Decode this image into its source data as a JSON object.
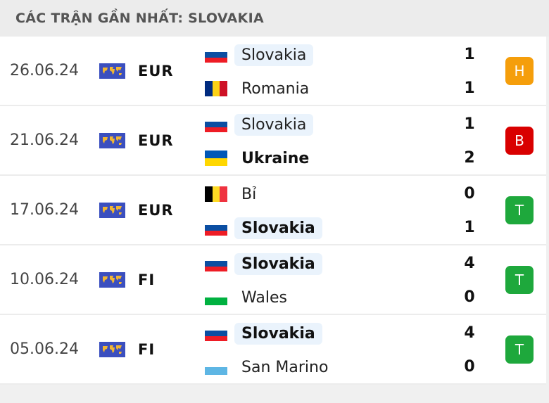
{
  "header": {
    "title": "CÁC TRẬN GẦN NHẤT: SLOVAKIA"
  },
  "colors": {
    "H": "#f59e0b",
    "B": "#d90000",
    "T": "#1ea83c"
  },
  "matches": [
    {
      "date": "26.06.24",
      "competition": "EUR",
      "home": {
        "name": "Slovakia",
        "flag": "slovakia",
        "score": "1",
        "highlight": true,
        "winner": false
      },
      "away": {
        "name": "Romania",
        "flag": "romania",
        "score": "1",
        "highlight": false,
        "winner": false
      },
      "result": "H"
    },
    {
      "date": "21.06.24",
      "competition": "EUR",
      "home": {
        "name": "Slovakia",
        "flag": "slovakia",
        "score": "1",
        "highlight": true,
        "winner": false
      },
      "away": {
        "name": "Ukraine",
        "flag": "ukraine",
        "score": "2",
        "highlight": false,
        "winner": true
      },
      "result": "B"
    },
    {
      "date": "17.06.24",
      "competition": "EUR",
      "home": {
        "name": "Bỉ",
        "flag": "belgium",
        "score": "0",
        "highlight": false,
        "winner": false
      },
      "away": {
        "name": "Slovakia",
        "flag": "slovakia",
        "score": "1",
        "highlight": true,
        "winner": true
      },
      "result": "T"
    },
    {
      "date": "10.06.24",
      "competition": "FI",
      "home": {
        "name": "Slovakia",
        "flag": "slovakia",
        "score": "4",
        "highlight": true,
        "winner": true
      },
      "away": {
        "name": "Wales",
        "flag": "wales",
        "score": "0",
        "highlight": false,
        "winner": false
      },
      "result": "T"
    },
    {
      "date": "05.06.24",
      "competition": "FI",
      "home": {
        "name": "Slovakia",
        "flag": "slovakia",
        "score": "4",
        "highlight": true,
        "winner": true
      },
      "away": {
        "name": "San Marino",
        "flag": "san-marino",
        "score": "0",
        "highlight": false,
        "winner": false
      },
      "result": "T"
    }
  ]
}
